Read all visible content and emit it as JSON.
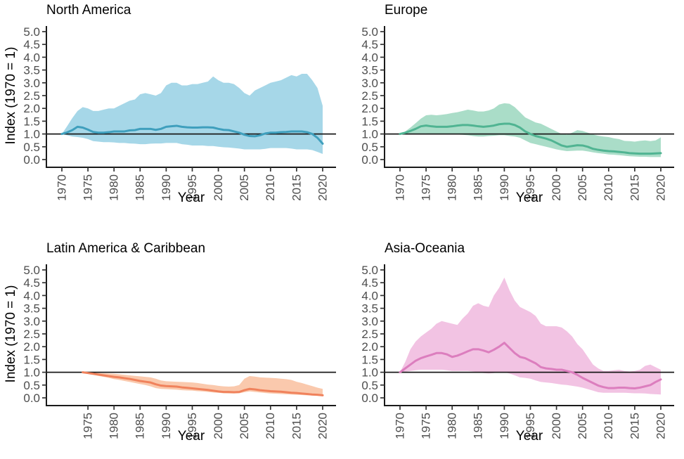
{
  "common": {
    "xlabel": "Year",
    "ylabel": "Index (1970 = 1)",
    "ref_value": 1.0,
    "y_ticks": [
      0,
      0.5,
      1,
      1.5,
      2,
      2.5,
      3,
      3.5,
      4,
      4.5,
      5
    ],
    "ylim": [
      -0.27,
      5.25
    ],
    "axis_color": "#1a1a1a",
    "tick_mark_color": "#333333",
    "tick_label_color": "#4d4d4d",
    "title_color": "#000000",
    "background": "#ffffff",
    "grid": "off",
    "legend": "none"
  },
  "chart_data": [
    {
      "type": "line+band",
      "title": "North America",
      "line_color": "#3f9fbd",
      "band_color": "#a6d7e8",
      "x_ticks": [
        1970,
        1975,
        1980,
        1985,
        1990,
        1995,
        2000,
        2005,
        2010,
        2015,
        2020
      ],
      "years": [
        1970,
        1971,
        1972,
        1973,
        1974,
        1975,
        1976,
        1977,
        1978,
        1979,
        1980,
        1981,
        1982,
        1983,
        1984,
        1985,
        1986,
        1987,
        1988,
        1989,
        1990,
        1991,
        1992,
        1993,
        1994,
        1995,
        1996,
        1997,
        1998,
        1999,
        2000,
        2001,
        2002,
        2003,
        2004,
        2005,
        2006,
        2007,
        2008,
        2009,
        2010,
        2011,
        2012,
        2013,
        2014,
        2015,
        2016,
        2017,
        2018,
        2019,
        2020
      ],
      "index": [
        1.0,
        1.06,
        1.15,
        1.28,
        1.25,
        1.17,
        1.08,
        1.05,
        1.05,
        1.07,
        1.1,
        1.1,
        1.1,
        1.14,
        1.15,
        1.2,
        1.2,
        1.2,
        1.16,
        1.2,
        1.28,
        1.3,
        1.32,
        1.28,
        1.26,
        1.25,
        1.25,
        1.26,
        1.26,
        1.25,
        1.2,
        1.16,
        1.15,
        1.1,
        1.05,
        0.97,
        0.92,
        0.91,
        0.95,
        1.02,
        1.05,
        1.05,
        1.07,
        1.08,
        1.1,
        1.1,
        1.1,
        1.07,
        1.0,
        0.85,
        0.62
      ],
      "upper": [
        1.0,
        1.3,
        1.62,
        1.9,
        2.05,
        2.0,
        1.9,
        1.9,
        1.95,
        2.0,
        2.0,
        2.1,
        2.2,
        2.3,
        2.35,
        2.55,
        2.6,
        2.55,
        2.5,
        2.6,
        2.9,
        3.0,
        3.0,
        2.9,
        2.9,
        2.95,
        2.95,
        3.0,
        3.05,
        3.25,
        3.1,
        3.0,
        3.0,
        2.95,
        2.8,
        2.6,
        2.5,
        2.7,
        2.8,
        2.9,
        3.0,
        3.05,
        3.1,
        3.2,
        3.3,
        3.25,
        3.35,
        3.35,
        3.1,
        2.8,
        2.1
      ],
      "lower": [
        1.0,
        0.95,
        0.9,
        0.88,
        0.85,
        0.8,
        0.72,
        0.7,
        0.68,
        0.68,
        0.67,
        0.65,
        0.65,
        0.63,
        0.62,
        0.6,
        0.6,
        0.62,
        0.63,
        0.63,
        0.65,
        0.65,
        0.65,
        0.6,
        0.58,
        0.55,
        0.55,
        0.55,
        0.53,
        0.53,
        0.5,
        0.48,
        0.47,
        0.45,
        0.43,
        0.4,
        0.4,
        0.4,
        0.4,
        0.42,
        0.45,
        0.45,
        0.45,
        0.45,
        0.43,
        0.4,
        0.4,
        0.4,
        0.37,
        0.3,
        0.22
      ]
    },
    {
      "type": "line+band",
      "title": "Europe",
      "line_color": "#50b492",
      "band_color": "#aaddc8",
      "x_ticks": [
        1970,
        1975,
        1980,
        1985,
        1990,
        1995,
        2000,
        2005,
        2010,
        2015,
        2020
      ],
      "years": [
        1970,
        1971,
        1972,
        1973,
        1974,
        1975,
        1976,
        1977,
        1978,
        1979,
        1980,
        1981,
        1982,
        1983,
        1984,
        1985,
        1986,
        1987,
        1988,
        1989,
        1990,
        1991,
        1992,
        1993,
        1994,
        1995,
        1996,
        1997,
        1998,
        1999,
        2000,
        2001,
        2002,
        2003,
        2004,
        2005,
        2006,
        2007,
        2008,
        2009,
        2010,
        2011,
        2012,
        2013,
        2014,
        2015,
        2016,
        2017,
        2018,
        2019,
        2020
      ],
      "index": [
        1.0,
        1.05,
        1.12,
        1.2,
        1.3,
        1.33,
        1.3,
        1.28,
        1.28,
        1.28,
        1.3,
        1.33,
        1.35,
        1.35,
        1.33,
        1.3,
        1.28,
        1.3,
        1.33,
        1.38,
        1.4,
        1.4,
        1.35,
        1.25,
        1.1,
        1.0,
        0.92,
        0.87,
        0.82,
        0.75,
        0.65,
        0.55,
        0.5,
        0.53,
        0.56,
        0.55,
        0.5,
        0.42,
        0.38,
        0.35,
        0.33,
        0.32,
        0.3,
        0.28,
        0.25,
        0.24,
        0.23,
        0.23,
        0.23,
        0.24,
        0.25
      ],
      "upper": [
        1.0,
        1.1,
        1.25,
        1.42,
        1.6,
        1.73,
        1.75,
        1.73,
        1.75,
        1.78,
        1.82,
        1.85,
        1.9,
        1.95,
        1.92,
        1.88,
        1.88,
        1.92,
        2.0,
        2.15,
        2.2,
        2.18,
        2.05,
        1.85,
        1.65,
        1.55,
        1.45,
        1.4,
        1.3,
        1.2,
        1.1,
        1.0,
        0.97,
        1.05,
        1.15,
        1.12,
        1.05,
        0.98,
        0.93,
        0.9,
        0.88,
        0.83,
        0.8,
        0.73,
        0.72,
        0.7,
        0.73,
        0.75,
        0.72,
        0.75,
        0.87
      ],
      "lower": [
        1.0,
        1.0,
        1.0,
        1.0,
        1.02,
        1.02,
        1.0,
        1.0,
        1.0,
        1.0,
        1.0,
        0.98,
        0.97,
        0.95,
        0.92,
        0.9,
        0.9,
        0.92,
        0.93,
        0.95,
        0.95,
        0.92,
        0.9,
        0.85,
        0.75,
        0.65,
        0.6,
        0.55,
        0.5,
        0.45,
        0.4,
        0.36,
        0.33,
        0.34,
        0.35,
        0.35,
        0.32,
        0.28,
        0.25,
        0.23,
        0.2,
        0.19,
        0.17,
        0.15,
        0.13,
        0.12,
        0.11,
        0.11,
        0.1,
        0.1,
        0.1
      ]
    },
    {
      "type": "line+band",
      "title": "Latin America & Caribbean",
      "line_color": "#f0825c",
      "band_color": "#fac9ad",
      "x_ticks": [
        1975,
        1980,
        1985,
        1990,
        1995,
        2000,
        2005,
        2010,
        2015,
        2020
      ],
      "years": [
        1974,
        1975,
        1976,
        1977,
        1978,
        1979,
        1980,
        1981,
        1982,
        1983,
        1984,
        1985,
        1986,
        1987,
        1988,
        1989,
        1990,
        1991,
        1992,
        1993,
        1994,
        1995,
        1996,
        1997,
        1998,
        1999,
        2000,
        2001,
        2002,
        2003,
        2004,
        2005,
        2006,
        2007,
        2008,
        2009,
        2010,
        2011,
        2012,
        2013,
        2014,
        2015,
        2016,
        2017,
        2018,
        2019,
        2020
      ],
      "index": [
        1.0,
        0.97,
        0.94,
        0.91,
        0.88,
        0.85,
        0.82,
        0.8,
        0.77,
        0.74,
        0.7,
        0.66,
        0.63,
        0.6,
        0.53,
        0.48,
        0.46,
        0.45,
        0.44,
        0.41,
        0.39,
        0.37,
        0.35,
        0.33,
        0.31,
        0.28,
        0.25,
        0.23,
        0.23,
        0.22,
        0.23,
        0.3,
        0.35,
        0.33,
        0.3,
        0.28,
        0.26,
        0.25,
        0.24,
        0.22,
        0.2,
        0.19,
        0.17,
        0.15,
        0.13,
        0.12,
        0.1
      ],
      "upper": [
        1.0,
        1.0,
        0.98,
        0.97,
        0.96,
        0.95,
        0.94,
        0.92,
        0.9,
        0.88,
        0.86,
        0.84,
        0.82,
        0.8,
        0.75,
        0.68,
        0.65,
        0.64,
        0.63,
        0.62,
        0.61,
        0.6,
        0.58,
        0.55,
        0.52,
        0.5,
        0.47,
        0.45,
        0.44,
        0.45,
        0.5,
        0.75,
        0.85,
        0.83,
        0.8,
        0.79,
        0.78,
        0.77,
        0.75,
        0.73,
        0.7,
        0.63,
        0.58,
        0.52,
        0.46,
        0.4,
        0.35
      ],
      "lower": [
        1.0,
        0.94,
        0.9,
        0.86,
        0.82,
        0.78,
        0.73,
        0.7,
        0.66,
        0.62,
        0.58,
        0.54,
        0.5,
        0.45,
        0.38,
        0.35,
        0.34,
        0.33,
        0.32,
        0.3,
        0.29,
        0.28,
        0.26,
        0.25,
        0.23,
        0.21,
        0.2,
        0.18,
        0.17,
        0.17,
        0.18,
        0.22,
        0.25,
        0.23,
        0.21,
        0.19,
        0.17,
        0.16,
        0.15,
        0.14,
        0.13,
        0.12,
        0.11,
        0.1,
        0.09,
        0.08,
        0.07
      ]
    },
    {
      "type": "line+band",
      "title": "Asia-Oceania",
      "line_color": "#dc7ebe",
      "band_color": "#f2c3e3",
      "x_ticks": [
        1970,
        1975,
        1980,
        1985,
        1990,
        1995,
        2000,
        2005,
        2010,
        2015,
        2020
      ],
      "years": [
        1970,
        1971,
        1972,
        1973,
        1974,
        1975,
        1976,
        1977,
        1978,
        1979,
        1980,
        1981,
        1982,
        1983,
        1984,
        1985,
        1986,
        1987,
        1988,
        1989,
        1990,
        1991,
        1992,
        1993,
        1994,
        1995,
        1996,
        1997,
        1998,
        1999,
        2000,
        2001,
        2002,
        2003,
        2004,
        2005,
        2006,
        2007,
        2008,
        2009,
        2010,
        2011,
        2012,
        2013,
        2014,
        2015,
        2016,
        2017,
        2018,
        2019,
        2020
      ],
      "index": [
        1.0,
        1.15,
        1.3,
        1.45,
        1.55,
        1.62,
        1.68,
        1.75,
        1.75,
        1.7,
        1.6,
        1.65,
        1.73,
        1.82,
        1.9,
        1.9,
        1.85,
        1.78,
        1.88,
        2.0,
        2.15,
        1.95,
        1.75,
        1.6,
        1.55,
        1.45,
        1.35,
        1.2,
        1.15,
        1.13,
        1.1,
        1.1,
        1.05,
        1.0,
        0.9,
        0.78,
        0.68,
        0.58,
        0.48,
        0.42,
        0.38,
        0.38,
        0.4,
        0.4,
        0.38,
        0.37,
        0.4,
        0.45,
        0.5,
        0.62,
        0.72
      ],
      "upper": [
        1.0,
        1.4,
        1.9,
        2.2,
        2.4,
        2.55,
        2.7,
        2.9,
        3.0,
        2.95,
        2.9,
        2.85,
        3.1,
        3.3,
        3.6,
        3.7,
        3.6,
        3.55,
        4.0,
        4.3,
        4.7,
        4.2,
        3.8,
        3.55,
        3.45,
        3.35,
        3.2,
        2.9,
        2.8,
        2.8,
        2.8,
        2.75,
        2.6,
        2.4,
        2.1,
        1.9,
        1.6,
        1.3,
        1.15,
        1.05,
        1.05,
        1.08,
        1.1,
        1.05,
        1.03,
        1.05,
        1.1,
        1.25,
        1.3,
        1.2,
        1.1
      ],
      "lower": [
        1.0,
        1.02,
        1.05,
        1.08,
        1.1,
        1.1,
        1.1,
        1.1,
        1.1,
        1.08,
        1.05,
        1.05,
        1.05,
        1.05,
        1.03,
        1.0,
        0.97,
        0.95,
        0.97,
        1.0,
        1.0,
        0.95,
        0.88,
        0.8,
        0.78,
        0.75,
        0.68,
        0.62,
        0.6,
        0.58,
        0.55,
        0.52,
        0.5,
        0.47,
        0.44,
        0.4,
        0.34,
        0.28,
        0.22,
        0.2,
        0.2,
        0.2,
        0.2,
        0.2,
        0.19,
        0.18,
        0.18,
        0.17,
        0.15,
        0.14,
        0.13
      ]
    }
  ]
}
